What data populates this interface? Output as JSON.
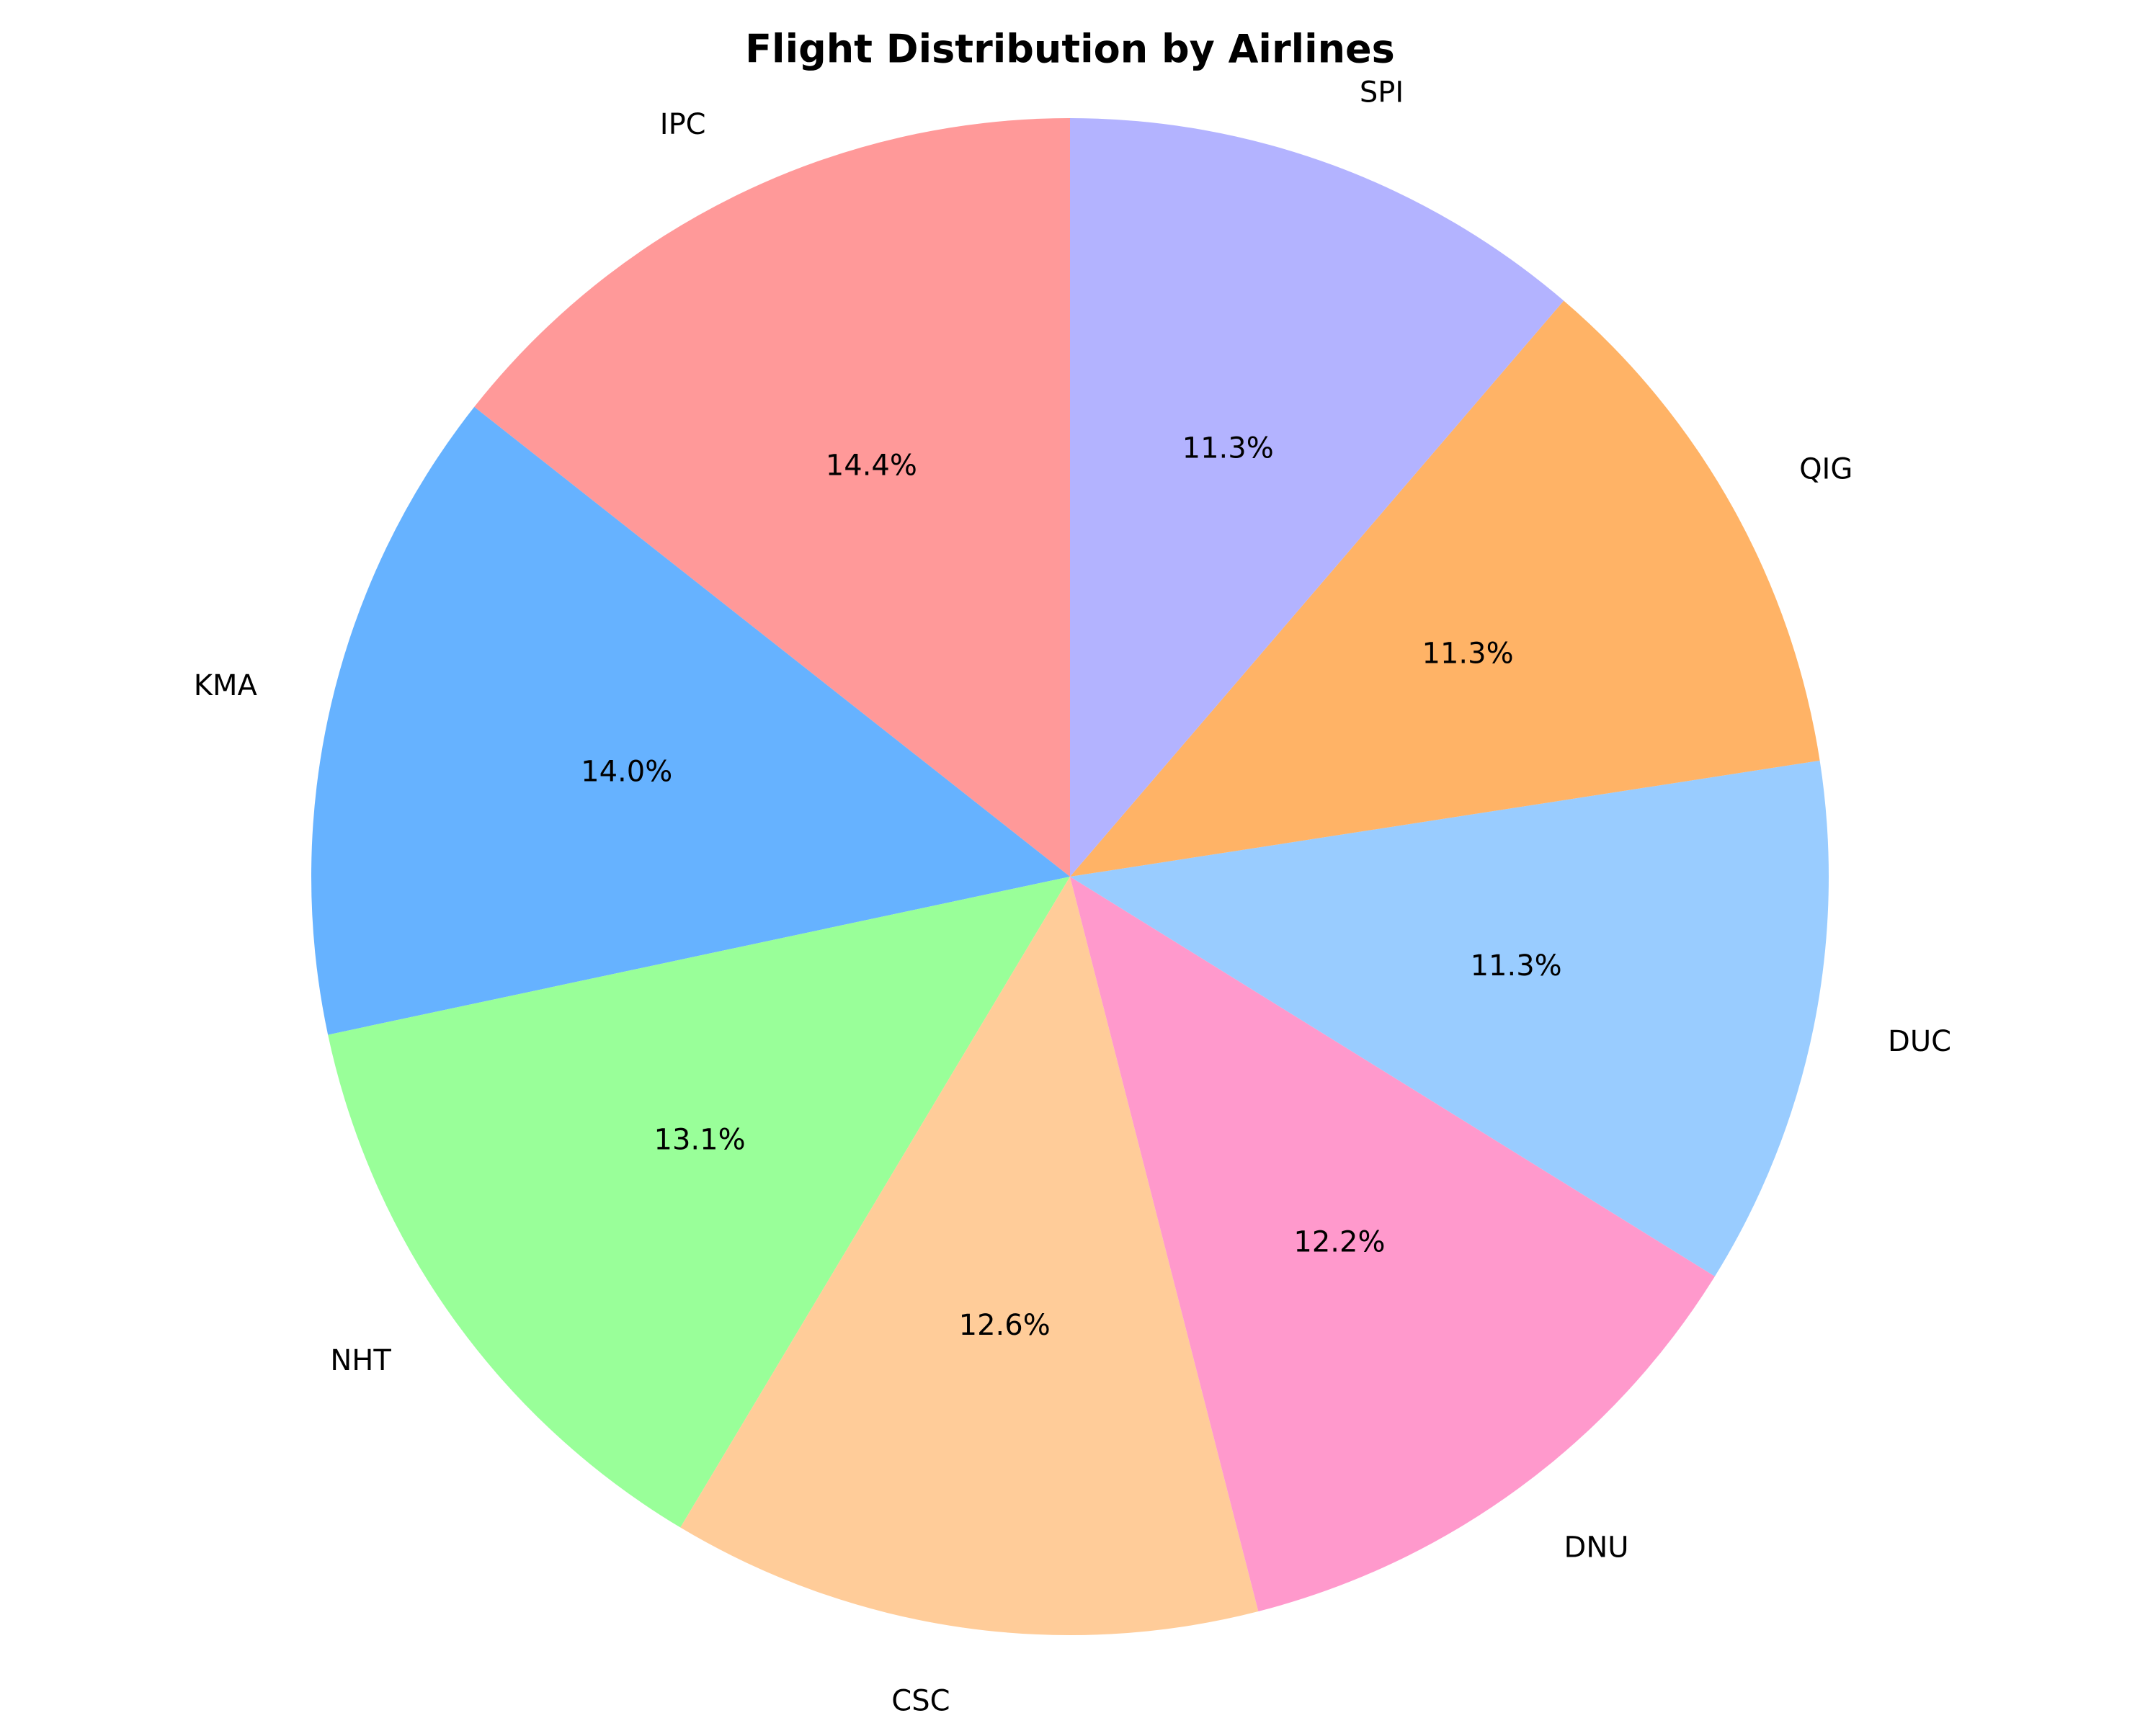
{
  "chart_data": {
    "type": "pie",
    "title": "Flight Distribution by Airlines",
    "start_angle_deg": 90,
    "direction": "counterclockwise",
    "slices": [
      {
        "label": "IPC",
        "value": 14.4,
        "pct_label": "14.4%",
        "color": "#FF9999"
      },
      {
        "label": "KMA",
        "value": 14.0,
        "pct_label": "14.0%",
        "color": "#66B2FF"
      },
      {
        "label": "NHT",
        "value": 13.1,
        "pct_label": "13.1%",
        "color": "#99FF99"
      },
      {
        "label": "CSC",
        "value": 12.6,
        "pct_label": "12.6%",
        "color": "#FFCC99"
      },
      {
        "label": "DNU",
        "value": 12.2,
        "pct_label": "12.2%",
        "color": "#FF99CC"
      },
      {
        "label": "DUC",
        "value": 11.3,
        "pct_label": "11.3%",
        "color": "#99CCFF"
      },
      {
        "label": "QIG",
        "value": 11.3,
        "pct_label": "11.3%",
        "color": "#FFB366"
      },
      {
        "label": "SPI",
        "value": 11.3,
        "pct_label": "11.3%",
        "color": "#B3B3FF"
      }
    ]
  }
}
